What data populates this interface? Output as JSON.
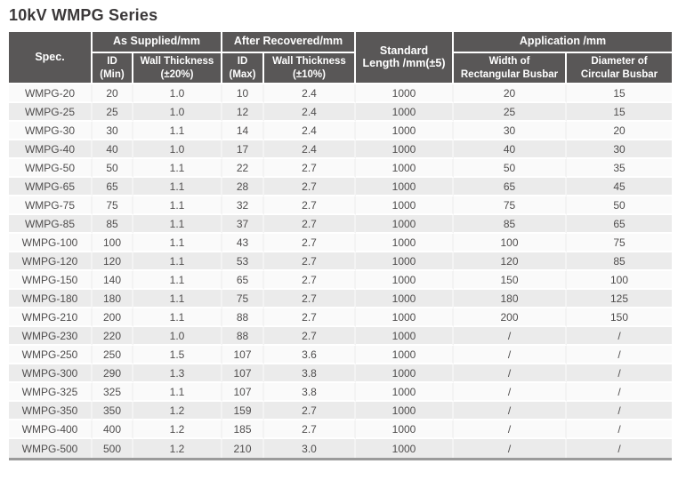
{
  "page_title": "10kV WMPG Series",
  "colors": {
    "title_text": "#3b3839",
    "header_bg": "#595757",
    "header_text": "#ffffff",
    "row_odd_bg": "#fafafa",
    "row_even_bg": "#ebebeb",
    "body_text": "#4f4d4d",
    "table_bottom_border": "#9b9b9b"
  },
  "table": {
    "header": {
      "spec": "Spec.",
      "as_supplied": "As Supplied/mm",
      "after_recovered": "After Recovered/mm",
      "standard_length": "Standard\nLength /mm(±5)",
      "application": "Application /mm",
      "id_min": "ID\n(Min)",
      "wall_thickness_20": "Wall Thickness\n(±20%)",
      "id_max": "ID\n(Max)",
      "wall_thickness_10": "Wall Thickness\n(±10%)",
      "width_rect": "Width of\nRectangular Busbar",
      "dia_circ": "Diameter of\nCircular Busbar"
    },
    "rows": [
      [
        "WMPG-20",
        "20",
        "1.0",
        "10",
        "2.4",
        "1000",
        "20",
        "15"
      ],
      [
        "WMPG-25",
        "25",
        "1.0",
        "12",
        "2.4",
        "1000",
        "25",
        "15"
      ],
      [
        "WMPG-30",
        "30",
        "1.1",
        "14",
        "2.4",
        "1000",
        "30",
        "20"
      ],
      [
        "WMPG-40",
        "40",
        "1.0",
        "17",
        "2.4",
        "1000",
        "40",
        "30"
      ],
      [
        "WMPG-50",
        "50",
        "1.1",
        "22",
        "2.7",
        "1000",
        "50",
        "35"
      ],
      [
        "WMPG-65",
        "65",
        "1.1",
        "28",
        "2.7",
        "1000",
        "65",
        "45"
      ],
      [
        "WMPG-75",
        "75",
        "1.1",
        "32",
        "2.7",
        "1000",
        "75",
        "50"
      ],
      [
        "WMPG-85",
        "85",
        "1.1",
        "37",
        "2.7",
        "1000",
        "85",
        "65"
      ],
      [
        "WMPG-100",
        "100",
        "1.1",
        "43",
        "2.7",
        "1000",
        "100",
        "75"
      ],
      [
        "WMPG-120",
        "120",
        "1.1",
        "53",
        "2.7",
        "1000",
        "120",
        "85"
      ],
      [
        "WMPG-150",
        "140",
        "1.1",
        "65",
        "2.7",
        "1000",
        "150",
        "100"
      ],
      [
        "WMPG-180",
        "180",
        "1.1",
        "75",
        "2.7",
        "1000",
        "180",
        "125"
      ],
      [
        "WMPG-210",
        "200",
        "1.1",
        "88",
        "2.7",
        "1000",
        "200",
        "150"
      ],
      [
        "WMPG-230",
        "220",
        "1.0",
        "88",
        "2.7",
        "1000",
        "/",
        "/"
      ],
      [
        "WMPG-250",
        "250",
        "1.5",
        "107",
        "3.6",
        "1000",
        "/",
        "/"
      ],
      [
        "WMPG-300",
        "290",
        "1.3",
        "107",
        "3.8",
        "1000",
        "/",
        "/"
      ],
      [
        "WMPG-325",
        "325",
        "1.1",
        "107",
        "3.8",
        "1000",
        "/",
        "/"
      ],
      [
        "WMPG-350",
        "350",
        "1.2",
        "159",
        "2.7",
        "1000",
        "/",
        "/"
      ],
      [
        "WMPG-400",
        "400",
        "1.2",
        "185",
        "2.7",
        "1000",
        "/",
        "/"
      ],
      [
        "WMPG-500",
        "500",
        "1.2",
        "210",
        "3.0",
        "1000",
        "/",
        "/"
      ]
    ]
  }
}
